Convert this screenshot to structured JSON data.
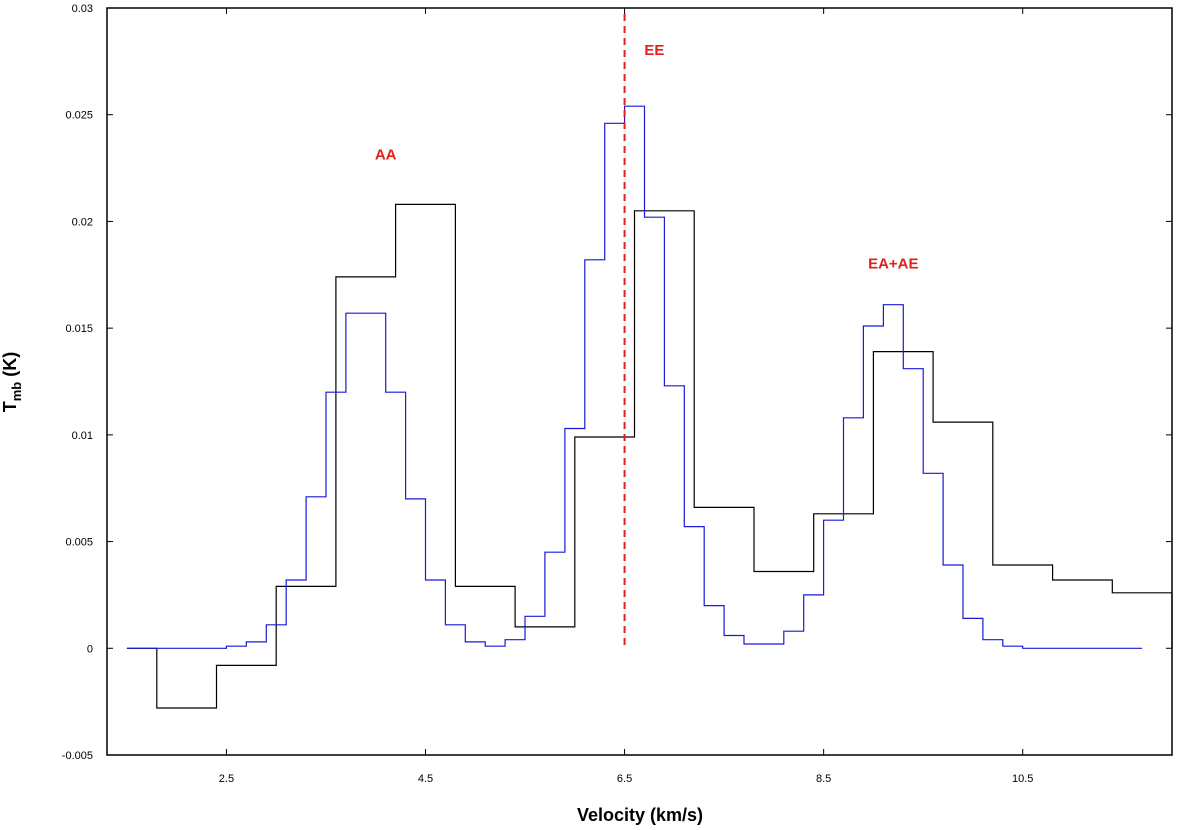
{
  "chart_data": {
    "type": "line",
    "step": true,
    "xlabel": "Velocity (km/s)",
    "ylabel": "T",
    "ylabel_sub": "mb",
    "ylabel_unit": " (K)",
    "xlim": [
      1.3,
      12.0
    ],
    "ylim": [
      -0.005,
      0.03
    ],
    "xticks": [
      "2.5",
      "4.5",
      "6.5",
      "8.5",
      "10.5"
    ],
    "yticks": [
      "-0.005",
      "0",
      "0.005",
      "0.01",
      "0.015",
      "0.02",
      "0.025",
      "0.03"
    ],
    "grid": false,
    "series": [
      {
        "color": "#000000",
        "x": [
          1.5,
          1.8,
          2.4,
          3.0,
          3.6,
          4.2,
          4.8,
          5.4,
          6.0,
          6.6,
          7.2,
          7.8,
          8.4,
          9.0,
          9.6,
          10.2,
          10.8,
          11.4
        ],
        "values": [
          0,
          -0.0028,
          -0.0008,
          0.0029,
          0.0174,
          0.0208,
          0.0029,
          0.001,
          0.0099,
          0.0205,
          0.0066,
          0.0036,
          0.0063,
          0.0139,
          0.0106,
          0.0039,
          0.0032,
          0.0026
        ],
        "end_x": 12.0
      },
      {
        "color": "#1a1ad8",
        "x": [
          1.5,
          1.7,
          1.9,
          2.1,
          2.3,
          2.5,
          2.7,
          2.9,
          3.1,
          3.3,
          3.5,
          3.7,
          3.9,
          4.1,
          4.3,
          4.5,
          4.7,
          4.9,
          5.1,
          5.3,
          5.5,
          5.7,
          5.9,
          6.1,
          6.3,
          6.5,
          6.7,
          6.9,
          7.1,
          7.3,
          7.5,
          7.7,
          7.9,
          8.1,
          8.3,
          8.5,
          8.7,
          8.9,
          9.1,
          9.3,
          9.5,
          9.7,
          9.9,
          10.1,
          10.3,
          10.5,
          10.7,
          10.9,
          11.1,
          11.3,
          11.5
        ],
        "values": [
          0,
          0,
          0,
          0,
          0,
          0.0001,
          0.0003,
          0.0011,
          0.0032,
          0.0071,
          0.012,
          0.0157,
          0.0157,
          0.012,
          0.007,
          0.0032,
          0.0011,
          0.0003,
          0.0001,
          0.0004,
          0.0015,
          0.0045,
          0.0103,
          0.0182,
          0.0246,
          0.0254,
          0.0202,
          0.0123,
          0.0057,
          0.002,
          0.0006,
          0.0002,
          0.0002,
          0.0008,
          0.0025,
          0.006,
          0.0108,
          0.0151,
          0.0161,
          0.0131,
          0.0082,
          0.0039,
          0.0014,
          0.0004,
          0.0001,
          0,
          0,
          0,
          0,
          0,
          0
        ],
        "end_x": 11.7
      }
    ],
    "vline": {
      "x": 6.5,
      "color": "#e0201b",
      "style": "dashed"
    },
    "annotations": [
      {
        "text": "AA",
        "x": 4.1,
        "y": 0.0229,
        "color": "#e0201b"
      },
      {
        "text": "EE",
        "x": 6.8,
        "y": 0.0278,
        "color": "#e0201b"
      },
      {
        "text": "EA+AE",
        "x": 9.2,
        "y": 0.0178,
        "color": "#e0201b"
      }
    ]
  }
}
